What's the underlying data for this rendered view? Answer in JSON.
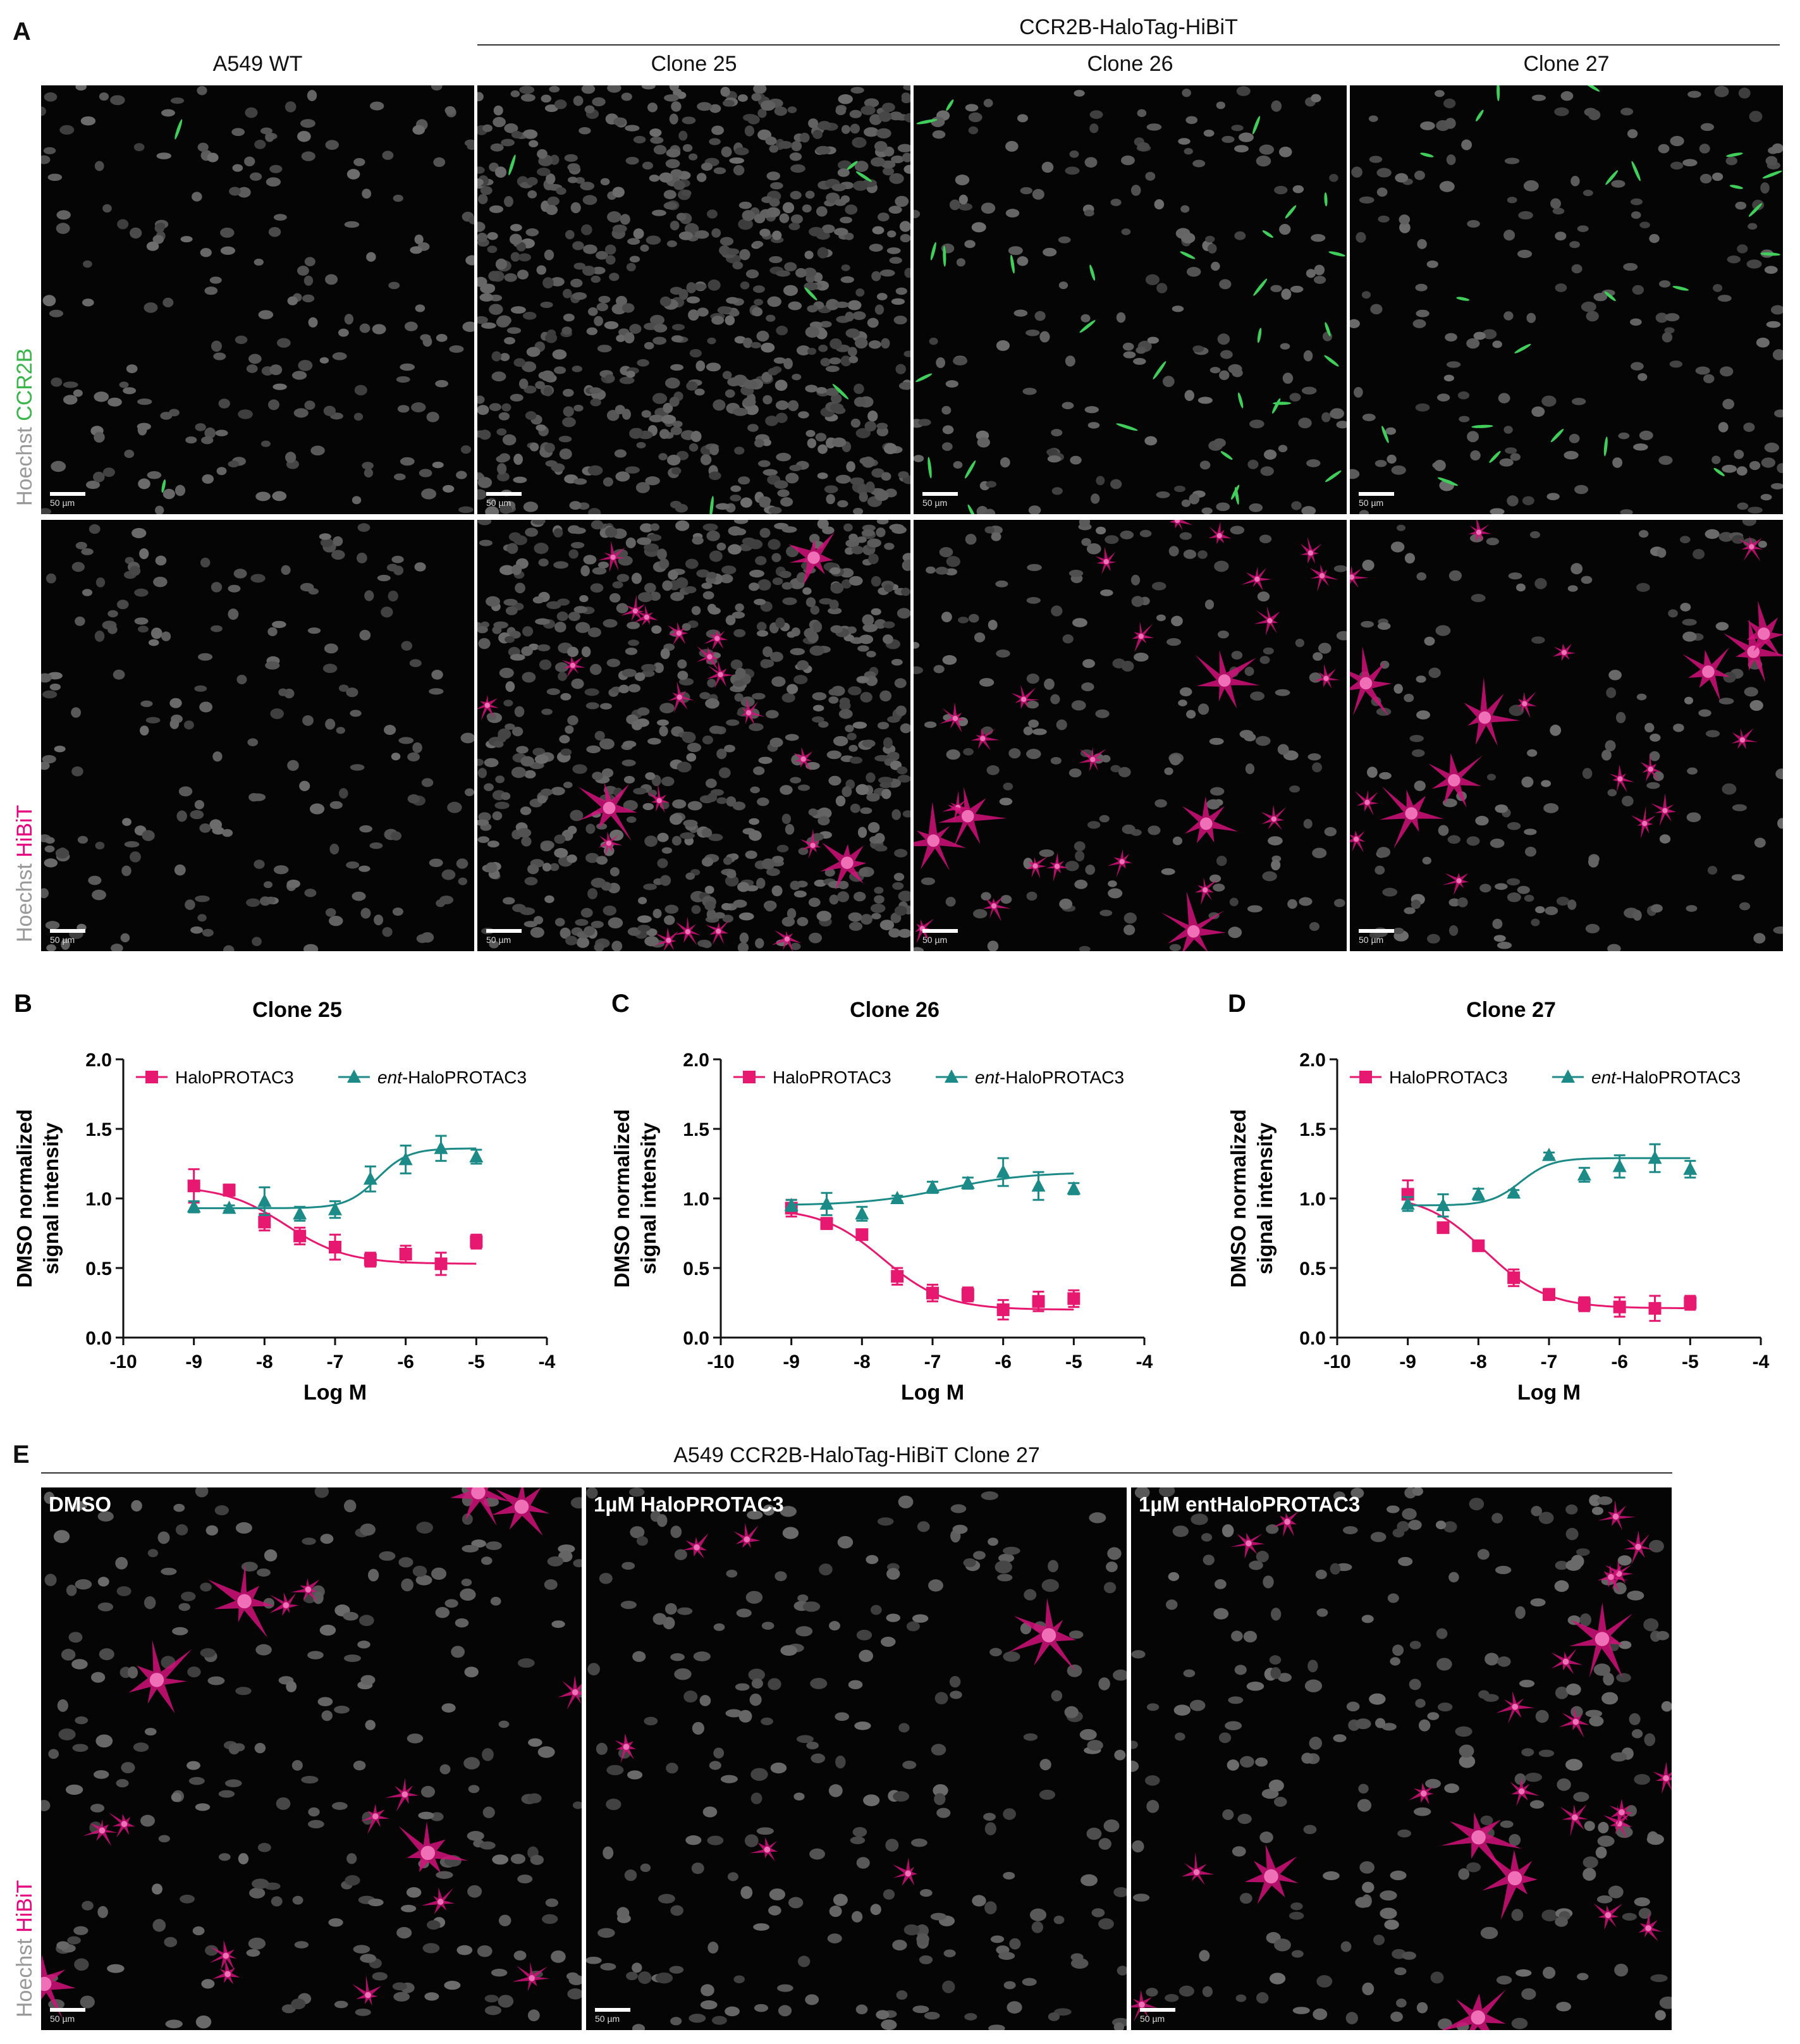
{
  "panel_a": {
    "letter": "A",
    "group_header": "CCR2B-HaloTag-HiBiT",
    "columns": [
      "A549 WT",
      "Clone 25",
      "Clone 26",
      "Clone 27"
    ],
    "row_labels": [
      {
        "part1": "Hoechst",
        "part2": "CCR2B",
        "color2": "#39b54a"
      },
      {
        "part1": "Hoechst",
        "part2": "HiBiT",
        "color2": "#e6007e"
      }
    ],
    "scale_bar": "50 µm"
  },
  "panel_e": {
    "letter": "E",
    "header": "A549 CCR2B-HaloTag-HiBiT Clone 27",
    "panels": [
      "DMSO",
      "1µM HaloPROTAC3",
      "1µM entHaloPROTAC3"
    ],
    "row_label": {
      "part1": "Hoechst",
      "part2": "HiBiT",
      "color2": "#e6007e"
    },
    "scale_bar": "50 µm"
  },
  "colors": {
    "halo": "#e6186f",
    "ent": "#1c8a86",
    "hoechst": "#9a9a9a",
    "ccr2b": "#39b54a",
    "hibit": "#e6007e"
  },
  "chart_data": [
    {
      "letter": "B",
      "type": "scatter",
      "title": "Clone 25",
      "xlabel": "Log M",
      "ylabel": [
        "DMSO normalized",
        "signal intensity"
      ],
      "xlim": [
        -10,
        -4
      ],
      "ylim": [
        0.0,
        2.0
      ],
      "xticks": [
        "-10",
        "-9",
        "-8",
        "-7",
        "-6",
        "-5",
        "-4"
      ],
      "yticks": [
        "0.0",
        "0.5",
        "1.0",
        "1.5",
        "2.0"
      ],
      "legend": [
        {
          "name": "HaloPROTAC3",
          "italic": ""
        },
        {
          "name": "-HaloPROTAC3",
          "italic": "ent"
        }
      ],
      "x": [
        -9,
        -8.5,
        -8,
        -7.5,
        -7,
        -6.5,
        -6,
        -5.5,
        -5
      ],
      "series": [
        {
          "name": "HaloPROTAC3",
          "marker": "square",
          "values": [
            1.09,
            1.06,
            0.83,
            0.73,
            0.65,
            0.56,
            0.6,
            0.53,
            0.69
          ],
          "errors": [
            0.12,
            0.04,
            0.06,
            0.06,
            0.09,
            0.05,
            0.06,
            0.08,
            0.05
          ]
        },
        {
          "name": "ent-HaloPROTAC3",
          "marker": "triangle",
          "values": [
            0.94,
            0.93,
            0.98,
            0.89,
            0.92,
            1.14,
            1.28,
            1.36,
            1.3
          ],
          "errors": [
            0.04,
            0.02,
            0.1,
            0.05,
            0.06,
            0.09,
            0.1,
            0.09,
            0.05
          ]
        }
      ]
    },
    {
      "letter": "C",
      "type": "scatter",
      "title": "Clone 26",
      "xlabel": "Log M",
      "ylabel": [
        "DMSO normalized",
        "signal intensity"
      ],
      "xlim": [
        -10,
        -4
      ],
      "ylim": [
        0.0,
        2.0
      ],
      "xticks": [
        "-10",
        "-9",
        "-8",
        "-7",
        "-6",
        "-5",
        "-4"
      ],
      "yticks": [
        "0.0",
        "0.5",
        "1.0",
        "1.5",
        "2.0"
      ],
      "legend": [
        {
          "name": "HaloPROTAC3",
          "italic": ""
        },
        {
          "name": "-HaloPROTAC3",
          "italic": "ent"
        }
      ],
      "x": [
        -9,
        -8.5,
        -8,
        -7.5,
        -7,
        -6.5,
        -6,
        -5.5,
        -5
      ],
      "series": [
        {
          "name": "HaloPROTAC3",
          "marker": "square",
          "values": [
            0.93,
            0.82,
            0.74,
            0.44,
            0.32,
            0.31,
            0.2,
            0.26,
            0.28
          ],
          "errors": [
            0.06,
            0.04,
            0.03,
            0.06,
            0.06,
            0.05,
            0.07,
            0.07,
            0.06
          ]
        },
        {
          "name": "ent-HaloPROTAC3",
          "marker": "triangle",
          "values": [
            0.95,
            0.96,
            0.89,
            1.0,
            1.08,
            1.11,
            1.19,
            1.09,
            1.07
          ],
          "errors": [
            0.04,
            0.08,
            0.05,
            0.02,
            0.04,
            0.04,
            0.1,
            0.1,
            0.04
          ]
        }
      ]
    },
    {
      "letter": "D",
      "type": "scatter",
      "title": "Clone 27",
      "xlabel": "Log M",
      "ylabel": [
        "DMSO normalized",
        "signal intensity"
      ],
      "xlim": [
        -10,
        -4
      ],
      "ylim": [
        0.0,
        2.0
      ],
      "xticks": [
        "-10",
        "-9",
        "-8",
        "-7",
        "-6",
        "-5",
        "-4"
      ],
      "yticks": [
        "0.0",
        "0.5",
        "1.0",
        "1.5",
        "2.0"
      ],
      "legend": [
        {
          "name": "HaloPROTAC3",
          "italic": ""
        },
        {
          "name": "-HaloPROTAC3",
          "italic": "ent"
        }
      ],
      "x": [
        -9,
        -8.5,
        -8,
        -7.5,
        -7,
        -6.5,
        -6,
        -5.5,
        -5
      ],
      "series": [
        {
          "name": "HaloPROTAC3",
          "marker": "square",
          "values": [
            1.03,
            0.79,
            0.66,
            0.43,
            0.31,
            0.24,
            0.22,
            0.21,
            0.25
          ],
          "errors": [
            0.1,
            0.03,
            0.03,
            0.06,
            0.04,
            0.05,
            0.07,
            0.09,
            0.05
          ]
        },
        {
          "name": "ent-HaloPROTAC3",
          "marker": "triangle",
          "values": [
            0.96,
            0.95,
            1.03,
            1.04,
            1.31,
            1.17,
            1.23,
            1.29,
            1.21
          ],
          "errors": [
            0.05,
            0.08,
            0.04,
            0.02,
            0.02,
            0.05,
            0.08,
            0.1,
            0.06
          ]
        }
      ]
    }
  ]
}
